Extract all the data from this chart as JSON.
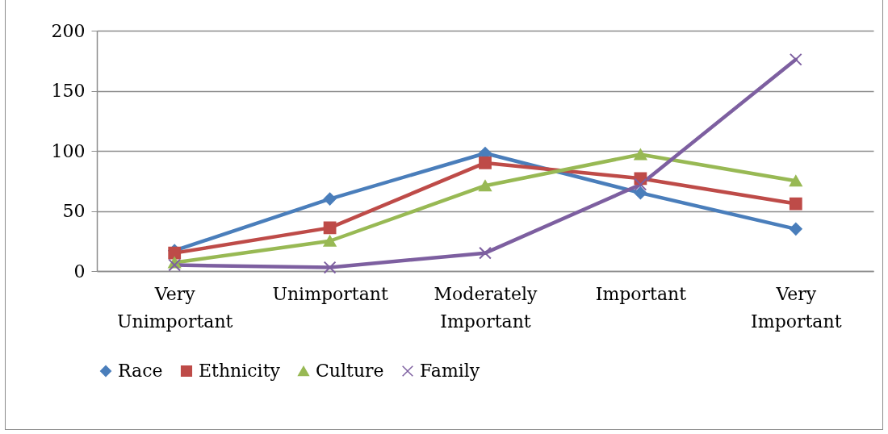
{
  "chart_data": {
    "type": "line",
    "categories": [
      "Very Unimportant",
      "Unimportant",
      "Moderately Important",
      "Important",
      "Very Important"
    ],
    "series": [
      {
        "name": "Race",
        "color": "#4a7ebb",
        "marker": "diamond",
        "values": [
          17,
          60,
          98,
          65,
          35
        ]
      },
      {
        "name": "Ethnicity",
        "color": "#be4b48",
        "marker": "square",
        "values": [
          15,
          36,
          90,
          77,
          56
        ]
      },
      {
        "name": "Culture",
        "color": "#98b954",
        "marker": "triangle",
        "values": [
          7,
          25,
          71,
          97,
          75
        ]
      },
      {
        "name": "Family",
        "color": "#7d5fa0",
        "marker": "cross",
        "values": [
          5,
          3,
          15,
          72,
          176
        ]
      }
    ],
    "ylim": [
      0,
      200
    ],
    "yticks": [
      0,
      50,
      100,
      150,
      200
    ],
    "grid": "y",
    "legend": "bottom",
    "line_style": "solid"
  }
}
